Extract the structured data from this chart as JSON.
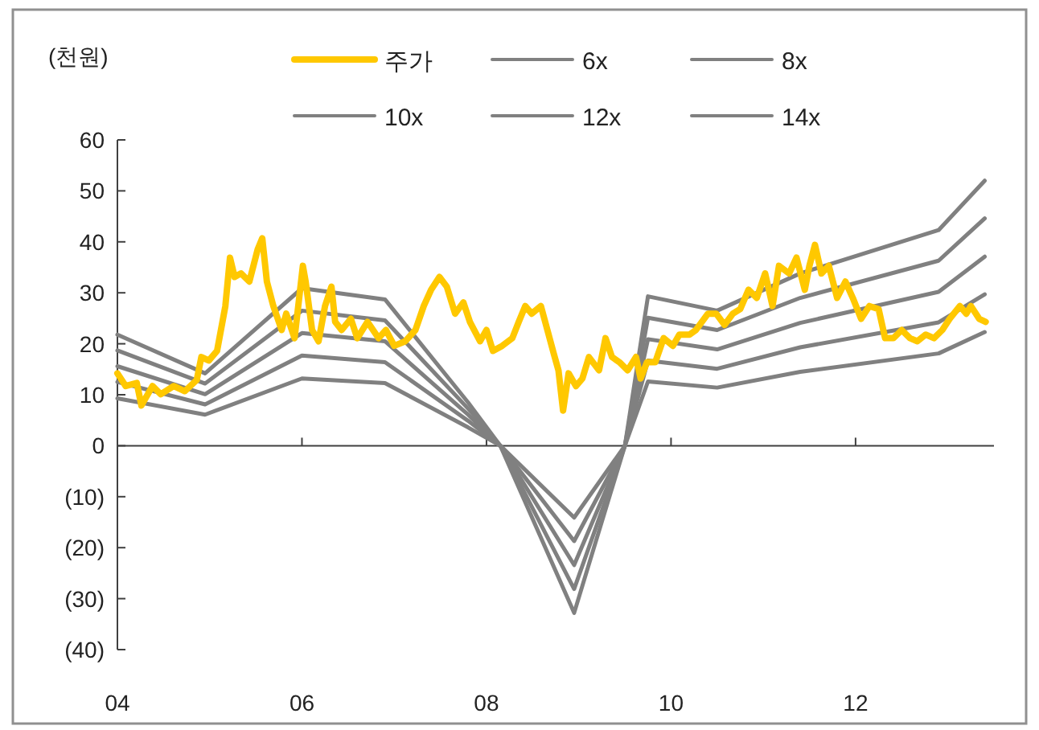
{
  "chart_data": {
    "type": "line",
    "ylabel": "(천원)",
    "legend": "top",
    "xlim": [
      2004,
      2013.5
    ],
    "xticks": [
      {
        "value": 2004,
        "label": "04"
      },
      {
        "value": 2006,
        "label": "06"
      },
      {
        "value": 2008,
        "label": "08"
      },
      {
        "value": 2010,
        "label": "10"
      },
      {
        "value": 2012,
        "label": "12"
      }
    ],
    "ylim": [
      -40,
      60
    ],
    "yticks": [
      {
        "value": -40,
        "label": "(40)"
      },
      {
        "value": -30,
        "label": "(30)"
      },
      {
        "value": -20,
        "label": "(20)"
      },
      {
        "value": -10,
        "label": "(10)"
      },
      0,
      10,
      20,
      30,
      40,
      50,
      60
    ],
    "x": [
      2004,
      2004.95,
      2006,
      2006.9,
      2007.8,
      2008.15,
      2008.95,
      2009.5,
      2009.75,
      2010.5,
      2011.4,
      2012.9,
      2013.4
    ],
    "series": [
      {
        "name": "주가",
        "color": "#ffc800",
        "x": [
          2004.0,
          2004.09,
          2004.21,
          2004.26,
          2004.38,
          2004.47,
          2004.61,
          2004.73,
          2004.86,
          2004.91,
          2004.99,
          2005.08,
          2005.17,
          2005.22,
          2005.27,
          2005.34,
          2005.43,
          2005.52,
          2005.57,
          2005.62,
          2005.69,
          2005.78,
          2005.83,
          2005.92,
          2006.01,
          2006.04,
          2006.11,
          2006.18,
          2006.25,
          2006.32,
          2006.36,
          2006.43,
          2006.53,
          2006.6,
          2006.71,
          2006.83,
          2006.91,
          2007.0,
          2007.12,
          2007.23,
          2007.32,
          2007.4,
          2007.49,
          2007.57,
          2007.66,
          2007.75,
          2007.82,
          2007.93,
          2008.0,
          2008.07,
          2008.17,
          2008.28,
          2008.35,
          2008.42,
          2008.49,
          2008.59,
          2008.66,
          2008.73,
          2008.78,
          2008.83,
          2008.89,
          2008.97,
          2009.04,
          2009.11,
          2009.22,
          2009.29,
          2009.36,
          2009.44,
          2009.53,
          2009.62,
          2009.67,
          2009.74,
          2009.83,
          2009.92,
          2010.02,
          2010.09,
          2010.2,
          2010.27,
          2010.4,
          2010.49,
          2010.58,
          2010.67,
          2010.75,
          2010.84,
          2010.93,
          2011.02,
          2011.1,
          2011.17,
          2011.28,
          2011.36,
          2011.45,
          2011.5,
          2011.56,
          2011.63,
          2011.71,
          2011.8,
          2011.89,
          2011.97,
          2012.06,
          2012.15,
          2012.25,
          2012.32,
          2012.41,
          2012.5,
          2012.59,
          2012.67,
          2012.76,
          2012.85,
          2012.94,
          2013.02,
          2013.13,
          2013.2,
          2013.25,
          2013.34,
          2013.41
        ],
        "values": [
          14.2,
          11.7,
          12.3,
          7.9,
          11.7,
          10.1,
          11.7,
          10.7,
          12.9,
          17.4,
          16.7,
          18.6,
          27.4,
          36.9,
          33.1,
          33.8,
          32.2,
          38.5,
          40.7,
          32.2,
          27.4,
          22.7,
          25.9,
          21.1,
          35.3,
          32.2,
          22.7,
          20.5,
          27.4,
          31.2,
          24.3,
          22.7,
          24.9,
          21.1,
          24.3,
          21.1,
          22.7,
          19.6,
          20.5,
          22.7,
          27.4,
          30.6,
          33.1,
          31.2,
          25.9,
          28.1,
          24.3,
          20.5,
          22.7,
          18.6,
          19.6,
          21.1,
          24.3,
          27.4,
          25.9,
          27.4,
          22.7,
          18.0,
          14.8,
          6.9,
          14.2,
          11.7,
          13.2,
          17.4,
          14.8,
          21.1,
          17.4,
          16.4,
          14.8,
          17.4,
          13.2,
          16.4,
          16.4,
          21.1,
          19.6,
          21.8,
          21.8,
          22.7,
          25.9,
          25.9,
          23.7,
          25.9,
          26.8,
          30.6,
          29.0,
          33.8,
          27.4,
          35.3,
          33.8,
          36.9,
          30.6,
          35.3,
          39.4,
          33.8,
          35.3,
          29.0,
          32.2,
          29.0,
          24.9,
          27.4,
          26.8,
          21.1,
          21.1,
          22.7,
          21.1,
          20.5,
          21.8,
          21.1,
          22.7,
          24.9,
          27.4,
          25.9,
          27.4,
          24.9,
          24.3
        ]
      },
      {
        "name": "6x",
        "color": "#808080",
        "values": [
          9.3,
          6.1,
          13.2,
          12.3,
          3.6,
          0,
          -14.1,
          0,
          12.6,
          11.4,
          14.5,
          18.1,
          22.3
        ]
      },
      {
        "name": "8x",
        "color": "#808080",
        "values": [
          12.5,
          8.1,
          17.7,
          16.4,
          4.9,
          0,
          -18.7,
          0,
          16.7,
          15.1,
          19.3,
          24.2,
          29.7
        ]
      },
      {
        "name": "10x",
        "color": "#808080",
        "values": [
          15.6,
          10.1,
          22.1,
          20.5,
          6.1,
          0,
          -23.4,
          0,
          20.9,
          18.9,
          24.1,
          30.2,
          37.1
        ]
      },
      {
        "name": "12x",
        "color": "#808080",
        "values": [
          18.7,
          12.2,
          26.5,
          24.6,
          7.3,
          0,
          -28.1,
          0,
          25.1,
          22.7,
          29.0,
          36.3,
          44.6
        ]
      },
      {
        "name": "14x",
        "color": "#808080",
        "values": [
          21.8,
          14.2,
          30.9,
          28.7,
          8.5,
          0,
          -32.8,
          0,
          29.3,
          26.5,
          33.8,
          42.3,
          52.0
        ]
      }
    ]
  }
}
